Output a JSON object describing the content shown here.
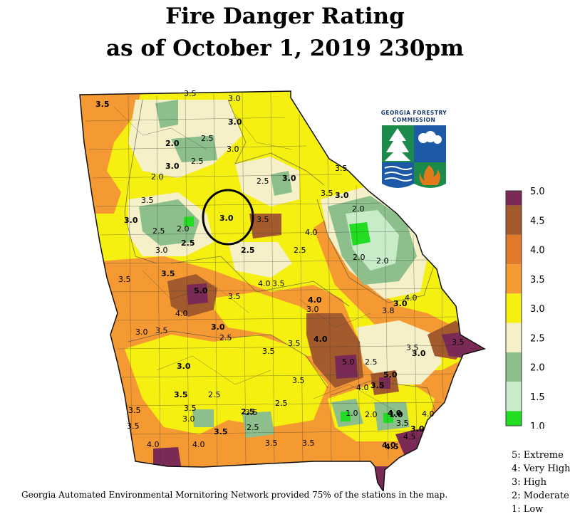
{
  "title": {
    "line1": "Fire Danger Rating",
    "line2": "as of October  1,  2019 230pm"
  },
  "credit": "Georgia Automated Environmental Mornitoring Network provided 75% of the stations in the map.",
  "logo": {
    "line1": "GEORGIA FORESTRY",
    "line2": "COMMISSION"
  },
  "legend": {
    "ticks": [
      "5.0",
      "4.5",
      "4.0",
      "3.5",
      "3.0",
      "2.5",
      "2.0",
      "1.5",
      "1.0"
    ],
    "colors": [
      "#7a2a55",
      "#a35a2c",
      "#e07a2a",
      "#f59a33",
      "#f5f010",
      "#f5f0c8",
      "#8cbf8c",
      "#c8ecc8",
      "#22dd22"
    ]
  },
  "levels": [
    "5: Extreme",
    "4: Very High",
    "3: High",
    "2: Moderate",
    "1: Low"
  ],
  "contour_labels": [
    "3.5",
    "3.5",
    "3.0",
    "2.0",
    "2.5",
    "3.0",
    "3.0",
    "3.5",
    "2.5",
    "3.0",
    "3.5",
    "2.0",
    "3.0",
    "2.5",
    "3.5",
    "3.0",
    "2.0",
    "2.5",
    "3.0",
    "2.0",
    "3.0",
    "2.5",
    "2.0",
    "3.5",
    "3.0",
    "3.5",
    "4.0",
    "2.5",
    "2.0",
    "2.5",
    "3.5",
    "4.0",
    "3.5",
    "5.0",
    "4.0",
    "3.5",
    "4.0",
    "4.0",
    "3.8",
    "3.0",
    "3.0",
    "3.5",
    "3.0",
    "2.5",
    "3.5",
    "4.0",
    "3.0",
    "2.5",
    "3.5",
    "5.0",
    "4.0",
    "5.0",
    "2.5",
    "3.5",
    "3.0",
    "3.5",
    "3.5",
    "2.5",
    "3.5",
    "4.0",
    "3.0",
    "3.5",
    "4.0",
    "3.5",
    "3.0",
    "2.5",
    "3.5",
    "2.5",
    "3.5",
    "4.0",
    "4.5",
    "3.5",
    "4.0",
    "3.5",
    "3.5",
    "3.0",
    "3.5",
    "1.0",
    "1.0",
    "2.0",
    "3.5",
    "4.5",
    "4.0"
  ]
}
